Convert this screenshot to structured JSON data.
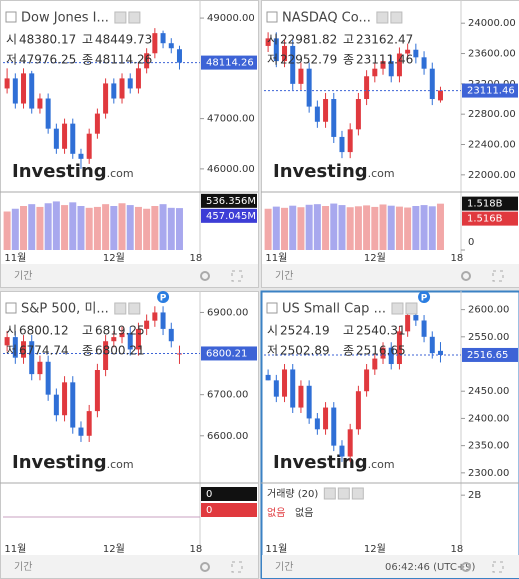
{
  "chart_data": [
    {
      "type": "candlestick",
      "title": "Dow Jones I...",
      "categories": [
        null,
        "11월",
        null,
        null,
        null,
        null,
        null,
        null,
        null,
        null,
        null,
        null,
        null,
        "12월",
        null,
        null,
        null,
        null,
        null,
        null,
        null,
        null,
        null,
        "18"
      ],
      "open": [
        47600,
        47800,
        47300,
        47900,
        47200,
        47400,
        46800,
        46400,
        46900,
        46300,
        46200,
        46700,
        47100,
        47700,
        47400,
        47800,
        47600,
        48000,
        48300,
        48700,
        48500,
        48380.17,
        null,
        null
      ],
      "high": [
        48000,
        47900,
        48000,
        47950,
        47500,
        47500,
        46900,
        47000,
        47000,
        46400,
        46800,
        47200,
        47800,
        47800,
        47900,
        47900,
        48100,
        48400,
        48800,
        48750,
        48600,
        48449.73,
        null,
        null
      ],
      "low": [
        47500,
        47200,
        47200,
        47100,
        47100,
        46700,
        46300,
        46300,
        46200,
        46000,
        46100,
        46600,
        47000,
        47300,
        47300,
        47500,
        47500,
        47900,
        48200,
        48400,
        48300,
        47976.25,
        null,
        null
      ],
      "close": [
        47800,
        47300,
        47900,
        47200,
        47400,
        46800,
        46400,
        46900,
        46300,
        46200,
        46700,
        47100,
        47700,
        47400,
        47800,
        47600,
        48000,
        48300,
        48700,
        48500,
        48400,
        48114.26,
        null,
        null
      ],
      "ylim": [
        45580,
        49260
      ],
      "yticks": [
        {
          "value": 46000,
          "label": "46000.00"
        },
        {
          "value": 47000,
          "label": "47000.00"
        },
        {
          "value": 49000,
          "label": "49000.00"
        }
      ],
      "up_color": "#e0393e",
      "down_color": "#2f6fd6",
      "tag_color": "#3d63d6",
      "ohlc_labels": [
        "시",
        "고",
        "저",
        "종"
      ],
      "watermark": [
        "Investing",
        ".com"
      ],
      "period_label": "기간",
      "volume": [
        420,
        450,
        480,
        500,
        470,
        510,
        530,
        490,
        520,
        480,
        460,
        470,
        500,
        480,
        510,
        490,
        470,
        450,
        480,
        500,
        460,
        457.045,
        null,
        null
      ],
      "volume_colors": [
        "#f2a8a8",
        "#a8a8ee"
      ],
      "vlim": [
        0,
        600
      ],
      "vtags": [
        {
          "value": 536.356,
          "label": "536.356M"
        },
        {
          "value": 457.045,
          "label": "457.045M"
        }
      ],
      "vtag_colors": [
        "#111111",
        "#3d3dd6"
      ]
    },
    {
      "type": "candlestick",
      "title": "NASDAQ Co...",
      "categories": [
        null,
        "11월",
        null,
        null,
        null,
        null,
        null,
        null,
        null,
        null,
        null,
        null,
        null,
        "12월",
        null,
        null,
        null,
        null,
        null,
        null,
        null,
        null,
        null,
        "18"
      ],
      "open": [
        23700,
        23800,
        23500,
        23700,
        23200,
        23400,
        22900,
        22700,
        23000,
        22500,
        22300,
        22600,
        23000,
        23300,
        23400,
        23500,
        23300,
        23600,
        23650,
        23550,
        23400,
        22981.82,
        null,
        null
      ],
      "high": [
        23880,
        23880,
        23780,
        23780,
        23480,
        23480,
        22980,
        23080,
        23080,
        22580,
        22680,
        23080,
        23380,
        23480,
        23580,
        23580,
        23680,
        23730,
        23730,
        23630,
        23480,
        23162.47,
        null,
        null
      ],
      "low": [
        23620,
        23420,
        23420,
        23120,
        23120,
        22820,
        22620,
        22620,
        22420,
        22220,
        22220,
        22520,
        22920,
        23220,
        23320,
        23220,
        23220,
        23520,
        23470,
        23320,
        22920,
        22952.79,
        null,
        null
      ],
      "close": [
        23800,
        23500,
        23700,
        23200,
        23400,
        22900,
        22700,
        23000,
        22500,
        22300,
        22600,
        23000,
        23300,
        23400,
        23500,
        23300,
        23600,
        23650,
        23550,
        23400,
        23000,
        23111.46,
        null,
        null
      ],
      "ylim": [
        21800,
        24240
      ],
      "yticks": [
        {
          "value": 22000,
          "label": "22000.00"
        },
        {
          "value": 22400,
          "label": "22400.00"
        },
        {
          "value": 22800,
          "label": "22800.00"
        },
        {
          "value": 23200,
          "label": "23200.00"
        },
        {
          "value": 23600,
          "label": "23600.00"
        },
        {
          "value": 24000,
          "label": "24000.00"
        }
      ],
      "up_color": "#e0393e",
      "down_color": "#2f6fd6",
      "tag_color": "#3d63d6",
      "ohlc_labels": [
        "시",
        "고",
        "저",
        "종"
      ],
      "watermark": [
        "Investing",
        ".com"
      ],
      "period_label": "기간",
      "volume": [
        1.35,
        1.42,
        1.38,
        1.45,
        1.4,
        1.48,
        1.5,
        1.44,
        1.52,
        1.47,
        1.4,
        1.43,
        1.46,
        1.41,
        1.49,
        1.45,
        1.42,
        1.39,
        1.44,
        1.47,
        1.43,
        1.516,
        null,
        null
      ],
      "volume_colors": [
        "#f2a8a8",
        "#a8a8ee"
      ],
      "vlim": [
        0,
        1.8
      ],
      "vticks": [
        0
      ],
      "vtags": [
        {
          "value": 1.518,
          "label": "1.518B"
        },
        {
          "value": 1.516,
          "label": "1.516B"
        }
      ],
      "vtag_colors": [
        "#111111",
        "#e0393e"
      ]
    },
    {
      "type": "candlestick",
      "title": "S&P 500, 미...",
      "badge": "P",
      "categories": [
        null,
        "11월",
        null,
        null,
        null,
        null,
        null,
        null,
        null,
        null,
        null,
        null,
        null,
        "12월",
        null,
        null,
        null,
        null,
        null,
        null,
        null,
        null,
        null,
        "18"
      ],
      "open": [
        6820,
        6840,
        6790,
        6830,
        6750,
        6780,
        6700,
        6650,
        6730,
        6620,
        6600,
        6660,
        6760,
        6830,
        6840,
        6850,
        6810,
        6860,
        6880,
        6900,
        6860,
        6800.12,
        null,
        null
      ],
      "high": [
        6855,
        6855,
        6845,
        6845,
        6795,
        6795,
        6715,
        6745,
        6745,
        6635,
        6675,
        6775,
        6845,
        6855,
        6865,
        6865,
        6875,
        6895,
        6915,
        6915,
        6875,
        6819.25,
        null,
        null
      ],
      "low": [
        6805,
        6775,
        6775,
        6735,
        6735,
        6685,
        6635,
        6635,
        6605,
        6585,
        6585,
        6645,
        6745,
        6815,
        6825,
        6795,
        6795,
        6845,
        6865,
        6845,
        6815,
        6774.74,
        null,
        null
      ],
      "close": [
        6840,
        6790,
        6830,
        6750,
        6780,
        6700,
        6650,
        6730,
        6620,
        6600,
        6660,
        6760,
        6830,
        6840,
        6850,
        6810,
        6860,
        6880,
        6900,
        6860,
        6830,
        6800.21,
        null,
        null
      ],
      "ylim": [
        6490,
        6940
      ],
      "yticks": [
        {
          "value": 6600,
          "label": "6600.00"
        },
        {
          "value": 6700,
          "label": "6700.00"
        },
        {
          "value": 6900,
          "label": "6900.00"
        }
      ],
      "up_color": "#e0393e",
      "down_color": "#2f6fd6",
      "tag_color": "#3d63d6",
      "ohlc_labels": [
        "시",
        "고",
        "저",
        "종"
      ],
      "watermark": [
        "Investing",
        ".com"
      ],
      "period_label": "기간",
      "vtags": [
        0,
        0
      ],
      "vtag_colors": [
        "#111111",
        "#e0393e"
      ]
    },
    {
      "type": "candlestick",
      "title": "US Small Cap ...",
      "badge": "P",
      "categories": [
        null,
        "11월",
        null,
        null,
        null,
        null,
        null,
        null,
        null,
        null,
        null,
        null,
        null,
        "12월",
        null,
        null,
        null,
        null,
        null,
        null,
        null,
        null,
        null,
        "18"
      ],
      "open": [
        2480,
        2470,
        2440,
        2490,
        2420,
        2460,
        2400,
        2380,
        2420,
        2350,
        2330,
        2380,
        2450,
        2490,
        2510,
        2530,
        2500,
        2560,
        2590,
        2580,
        2550,
        2524.19,
        null,
        null
      ],
      "high": [
        2490,
        2480,
        2500,
        2500,
        2470,
        2470,
        2410,
        2430,
        2430,
        2360,
        2390,
        2460,
        2500,
        2520,
        2540,
        2540,
        2570,
        2600,
        2600,
        2590,
        2560,
        2540.31,
        null,
        null
      ],
      "low": [
        2470,
        2430,
        2430,
        2410,
        2410,
        2390,
        2370,
        2370,
        2340,
        2320,
        2320,
        2370,
        2440,
        2480,
        2500,
        2490,
        2490,
        2550,
        2570,
        2540,
        2510,
        2502.89,
        null,
        null
      ],
      "close": [
        2470,
        2440,
        2490,
        2420,
        2460,
        2400,
        2380,
        2420,
        2350,
        2330,
        2380,
        2450,
        2490,
        2510,
        2530,
        2500,
        2560,
        2590,
        2580,
        2550,
        2520,
        2516.65,
        null,
        null
      ],
      "ylim": [
        2285,
        2625
      ],
      "yticks": [
        {
          "value": 2300,
          "label": "2300.00"
        },
        {
          "value": 2350,
          "label": "2350.00"
        },
        {
          "value": 2400,
          "label": "2400.00"
        },
        {
          "value": 2450,
          "label": "2450.00"
        },
        {
          "value": 2550,
          "label": "2550.00"
        },
        {
          "value": 2600,
          "label": "2600.00"
        }
      ],
      "up_color": "#e0393e",
      "down_color": "#2f6fd6",
      "tag_color": "#3d63d6",
      "ohlc_labels": [
        "시",
        "고",
        "저",
        "종"
      ],
      "watermark": [
        "Investing",
        ".com"
      ],
      "period_label": "기간",
      "volume_title": "거래량 (20)",
      "volume_none": [
        "없음",
        "없음"
      ],
      "vlim": [
        0,
        2.4
      ],
      "vticks": [
        {
          "value": 2,
          "label": "2B"
        }
      ],
      "time": "06:42:46 (UTC+9)",
      "selected": true
    }
  ]
}
